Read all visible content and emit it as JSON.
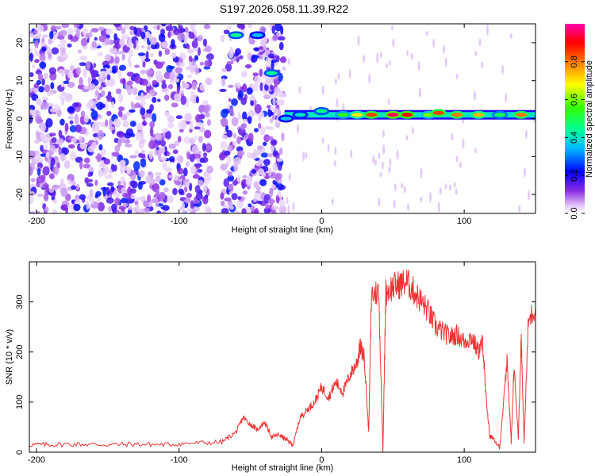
{
  "title": "S197.2026.058.11.39.R22",
  "chart_data": [
    {
      "type": "heatmap",
      "xlabel": "Height of straight line (km)",
      "ylabel": "Frequency (Hz)",
      "xlim": [
        -205,
        150
      ],
      "ylim": [
        -25,
        25
      ],
      "xticks": [
        "-200",
        "-100",
        "0",
        "100"
      ],
      "xtick_values": [
        -200,
        -100,
        0,
        100
      ],
      "yticks": [
        "20",
        "10",
        "0",
        "-10",
        "-20"
      ],
      "ytick_values": [
        20,
        10,
        0,
        -10,
        -20
      ],
      "colorbar": {
        "label": "Normalized spectral amplitude",
        "range": [
          0,
          1
        ],
        "ticks": [
          "0.0",
          "0.2",
          "0.4",
          "0.6",
          "0.8"
        ],
        "tick_values": [
          0.0,
          0.2,
          0.4,
          0.6,
          0.8
        ]
      },
      "dominant_frequency_hz": 1,
      "signal_onset_km": -26,
      "features": [
        {
          "x": -60,
          "y": 22,
          "amp": 0.45
        },
        {
          "x": -45,
          "y": 22,
          "amp": 0.35
        },
        {
          "x": -35,
          "y": 12,
          "amp": 0.45
        },
        {
          "x": -25,
          "y": 0,
          "amp": 0.35
        },
        {
          "x": -15,
          "y": 1,
          "amp": 0.4
        },
        {
          "x": 0,
          "y": 2,
          "amp": 0.45
        },
        {
          "x": 15,
          "y": 1,
          "amp": 0.55
        },
        {
          "x": 25,
          "y": 1,
          "amp": 0.7
        },
        {
          "x": 35,
          "y": 1,
          "amp": 0.85
        },
        {
          "x": 50,
          "y": 1,
          "amp": 0.95
        },
        {
          "x": 60,
          "y": 1,
          "amp": 0.9
        },
        {
          "x": 75,
          "y": 1,
          "amp": 0.6
        },
        {
          "x": 82,
          "y": 1.5,
          "amp": 0.85
        },
        {
          "x": 95,
          "y": 1,
          "amp": 0.8
        },
        {
          "x": 110,
          "y": 1,
          "amp": 0.75
        },
        {
          "x": 125,
          "y": 1,
          "amp": 0.5
        },
        {
          "x": 140,
          "y": 1,
          "amp": 0.8
        }
      ]
    },
    {
      "type": "line",
      "xlabel": "Height of straight line (km)",
      "ylabel": "SNR (10 * v/v)",
      "xlim": [
        -205,
        150
      ],
      "ylim": [
        0,
        380
      ],
      "xticks": [
        "-200",
        "-100",
        "0",
        "100"
      ],
      "xtick_values": [
        -200,
        -100,
        0,
        100
      ],
      "yticks": [
        "0",
        "100",
        "200",
        "300"
      ],
      "ytick_values": [
        0,
        100,
        200,
        300
      ],
      "color": "#ee3333",
      "x": [
        -205,
        -190,
        -170,
        -150,
        -130,
        -110,
        -90,
        -70,
        -60,
        -55,
        -50,
        -45,
        -40,
        -35,
        -30,
        -25,
        -20,
        -15,
        -10,
        -5,
        0,
        5,
        10,
        15,
        20,
        25,
        27,
        30,
        33,
        35,
        40,
        43,
        45,
        50,
        55,
        60,
        65,
        70,
        75,
        80,
        85,
        90,
        95,
        100,
        105,
        110,
        113,
        115,
        118,
        120,
        125,
        130,
        133,
        135,
        138,
        140,
        142,
        145,
        150
      ],
      "y": [
        15,
        15,
        16,
        15,
        16,
        15,
        18,
        20,
        40,
        70,
        55,
        45,
        60,
        30,
        35,
        25,
        15,
        70,
        85,
        100,
        130,
        110,
        140,
        120,
        155,
        180,
        210,
        190,
        40,
        315,
        320,
        5,
        320,
        330,
        335,
        340,
        320,
        300,
        280,
        250,
        240,
        230,
        235,
        220,
        230,
        200,
        220,
        120,
        30,
        30,
        10,
        180,
        20,
        170,
        30,
        230,
        20,
        260,
        290
      ]
    }
  ]
}
